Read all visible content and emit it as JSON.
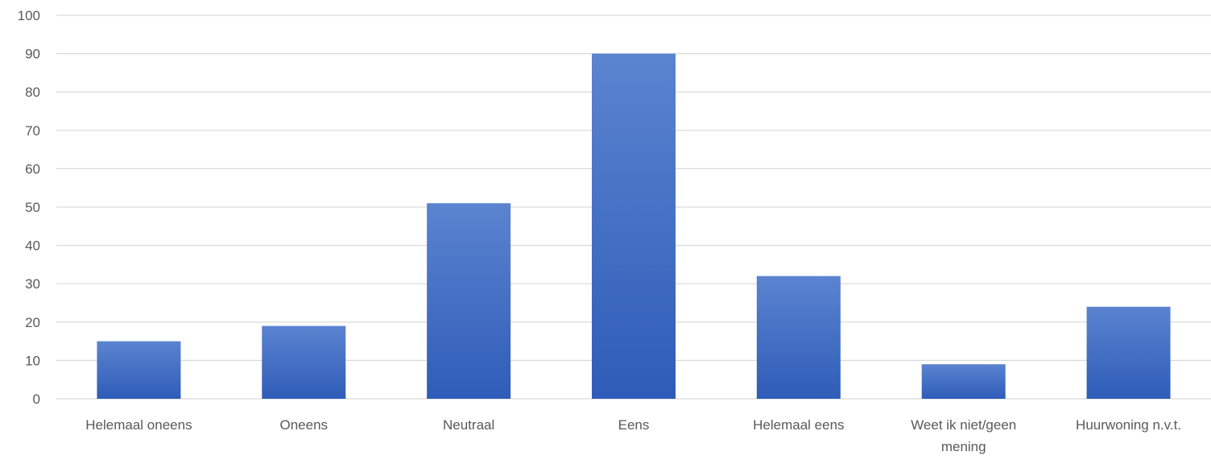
{
  "chart_data": {
    "type": "bar",
    "title": "",
    "xlabel": "",
    "ylabel": "",
    "ylim": [
      0,
      100
    ],
    "yticks": [
      0,
      10,
      20,
      30,
      40,
      50,
      60,
      70,
      80,
      90,
      100
    ],
    "grid": true,
    "legend": "none",
    "bar_color": "#4472c4",
    "categories": [
      "Helemaal oneens",
      "Oneens",
      "Neutraal",
      "Eens",
      "Helemaal eens",
      "Weet ik niet/geen mening",
      "Huurwoning n.v.t."
    ],
    "category_lines": [
      [
        "Helemaal oneens"
      ],
      [
        "Oneens"
      ],
      [
        "Neutraal"
      ],
      [
        "Eens"
      ],
      [
        "Helemaal eens"
      ],
      [
        "Weet ik niet/geen",
        "mening"
      ],
      [
        "Huurwoning n.v.t."
      ]
    ],
    "values": [
      15,
      19,
      51,
      90,
      32,
      9,
      24
    ]
  }
}
